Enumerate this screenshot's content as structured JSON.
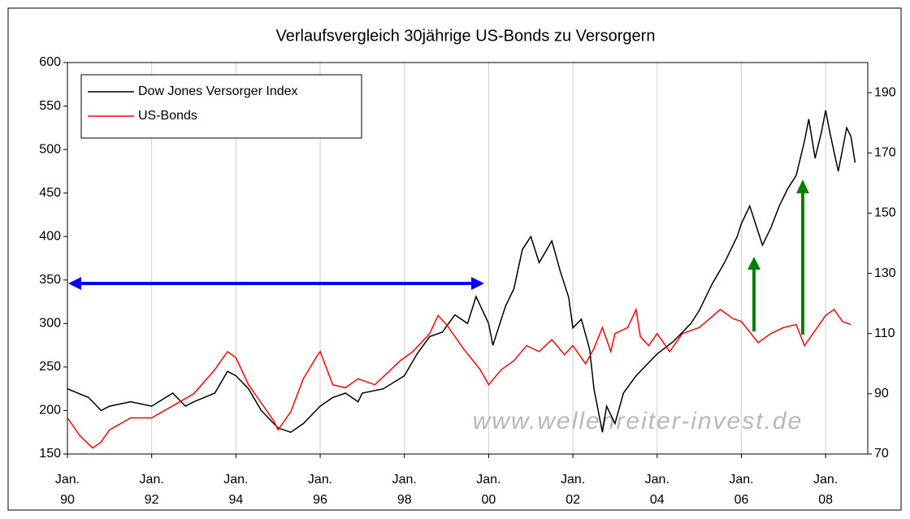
{
  "chart_data": {
    "type": "line",
    "title": "Verlaufsvergleich 30jährige US-Bonds zu Versorgern",
    "watermark": "www.wellenreiter-invest.de",
    "xlim": [
      1990,
      2009
    ],
    "xticks": [
      {
        "value": 1990,
        "label": "Jan. 90"
      },
      {
        "value": 1992,
        "label": "Jan. 92"
      },
      {
        "value": 1994,
        "label": "Jan. 94"
      },
      {
        "value": 1996,
        "label": "Jan. 96"
      },
      {
        "value": 1998,
        "label": "Jan. 98"
      },
      {
        "value": 2000,
        "label": "Jan. 00"
      },
      {
        "value": 2002,
        "label": "Jan. 02"
      },
      {
        "value": 2004,
        "label": "Jan. 04"
      },
      {
        "value": 2006,
        "label": "Jan. 06"
      },
      {
        "value": 2008,
        "label": "Jan. 08"
      }
    ],
    "ylim": [
      150,
      600
    ],
    "yticks": [
      150,
      200,
      250,
      300,
      350,
      400,
      450,
      500,
      550,
      600
    ],
    "y2lim": [
      70,
      200
    ],
    "y2ticks": [
      70,
      90,
      110,
      130,
      150,
      170,
      190
    ],
    "grid": "x",
    "legend": "top-left",
    "series": [
      {
        "name": "Dow Jones Versorger Index",
        "color": "#000000",
        "x": [
          1990,
          1990.5,
          1990.8,
          1991,
          1991.5,
          1992,
          1992.5,
          1992.8,
          1993,
          1993.5,
          1993.8,
          1994,
          1994.3,
          1994.6,
          1995,
          1995.3,
          1995.6,
          1996,
          1996.3,
          1996.6,
          1996.9,
          1997,
          1997.5,
          1998,
          1998.3,
          1998.6,
          1998.9,
          1999.2,
          1999.5,
          1999.7,
          2000,
          2000.1,
          2000.4,
          2000.6,
          2000.8,
          2001,
          2001.2,
          2001.5,
          2001.7,
          2001.9,
          2002,
          2002.2,
          2002.4,
          2002.5,
          2002.6,
          2002.7,
          2002.8,
          2003,
          2003.2,
          2003.5,
          2003.8,
          2004,
          2004.4,
          2004.8,
          2005,
          2005.3,
          2005.6,
          2005.9,
          2006,
          2006.2,
          2006.5,
          2006.7,
          2006.9,
          2007.1,
          2007.3,
          2007.5,
          2007.6,
          2007.75,
          2007.9,
          2008,
          2008.1,
          2008.3,
          2008.4,
          2008.5,
          2008.6,
          2008.7
        ],
        "values": [
          225,
          215,
          200,
          205,
          210,
          205,
          220,
          205,
          210,
          220,
          245,
          240,
          225,
          200,
          180,
          175,
          185,
          205,
          215,
          220,
          210,
          220,
          225,
          240,
          265,
          285,
          290,
          310,
          300,
          331,
          300,
          275,
          320,
          340,
          385,
          400,
          370,
          395,
          360,
          330,
          295,
          305,
          270,
          225,
          200,
          175,
          205,
          185,
          220,
          240,
          255,
          265,
          280,
          300,
          315,
          345,
          370,
          400,
          415,
          435,
          390,
          410,
          435,
          455,
          470,
          510,
          535,
          490,
          520,
          545,
          520,
          475,
          500,
          525,
          515,
          485
        ]
      },
      {
        "name": "US-Bonds",
        "color": "#ff0000",
        "axis": "y2",
        "x": [
          1990,
          1990.3,
          1990.6,
          1990.8,
          1991,
          1991.5,
          1992,
          1992.5,
          1993,
          1993.5,
          1993.8,
          1994,
          1994.3,
          1994.6,
          1994.9,
          1995,
          1995.3,
          1995.6,
          1995.9,
          1996,
          1996.3,
          1996.6,
          1996.9,
          1997.3,
          1997.6,
          1997.9,
          1998.2,
          1998.6,
          1998.8,
          1999,
          1999.4,
          1999.8,
          2000,
          2000.3,
          2000.6,
          2000.9,
          2001.2,
          2001.5,
          2001.8,
          2002,
          2002.3,
          2002.5,
          2002.7,
          2002.9,
          2003,
          2003.3,
          2003.5,
          2003.6,
          2003.8,
          2004,
          2004.3,
          2004.6,
          2005,
          2005.5,
          2005.8,
          2006,
          2006.4,
          2006.7,
          2007,
          2007.3,
          2007.5,
          2007.7,
          2008,
          2008.2,
          2008.4,
          2008.6
        ],
        "values": [
          82,
          76,
          72,
          74,
          78,
          82,
          82,
          86,
          90,
          98,
          104,
          102,
          93,
          87,
          81,
          78,
          84,
          95,
          102,
          104,
          93,
          92,
          95,
          93,
          97,
          101,
          104,
          110,
          116,
          113,
          105,
          98,
          93,
          98,
          101,
          106,
          104,
          108,
          103,
          106,
          100,
          105,
          112,
          104,
          110,
          112,
          118,
          109,
          106,
          110,
          104,
          110,
          112,
          118,
          115,
          114,
          107,
          110,
          112,
          113,
          106,
          110,
          116,
          118,
          114,
          113
        ]
      }
    ]
  }
}
